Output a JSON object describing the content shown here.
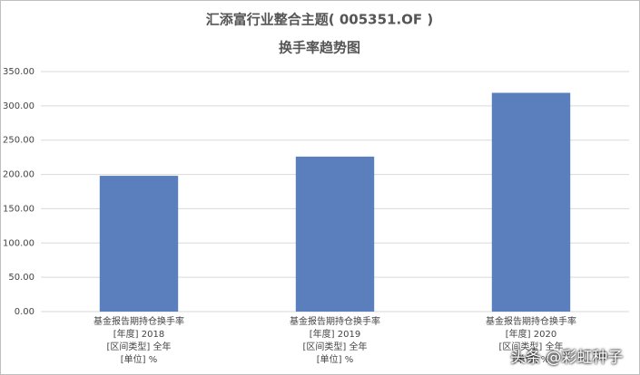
{
  "chart_data": {
    "type": "bar",
    "title": "汇添富行业整合主题( 005351.OF )",
    "subtitle": "换手率趋势图",
    "categories": [
      "基金报告期持仓换手率\n[年度] 2018\n[区间类型] 全年\n[单位] %",
      "基金报告期持仓换手率\n[年度] 2019\n[区间类型] 全年\n[单位] %",
      "基金报告期持仓换手率\n[年度] 2020\n[区间类型] 全年\n[单位] %"
    ],
    "values": [
      198,
      226,
      319
    ],
    "color": "#5b7fbd",
    "ylim": [
      0,
      350
    ],
    "yticks": [
      {
        "value": 0,
        "label": "0.00"
      },
      {
        "value": 50,
        "label": "50.00"
      },
      {
        "value": 100,
        "label": "100.00"
      },
      {
        "value": 150,
        "label": "150.00"
      },
      {
        "value": 200,
        "label": "200.00"
      },
      {
        "value": 250,
        "label": "250.00"
      },
      {
        "value": 300,
        "label": "300.00"
      },
      {
        "value": 350,
        "label": "350.00"
      }
    ],
    "grid": true
  },
  "watermark": "头条 @彩虹种子"
}
